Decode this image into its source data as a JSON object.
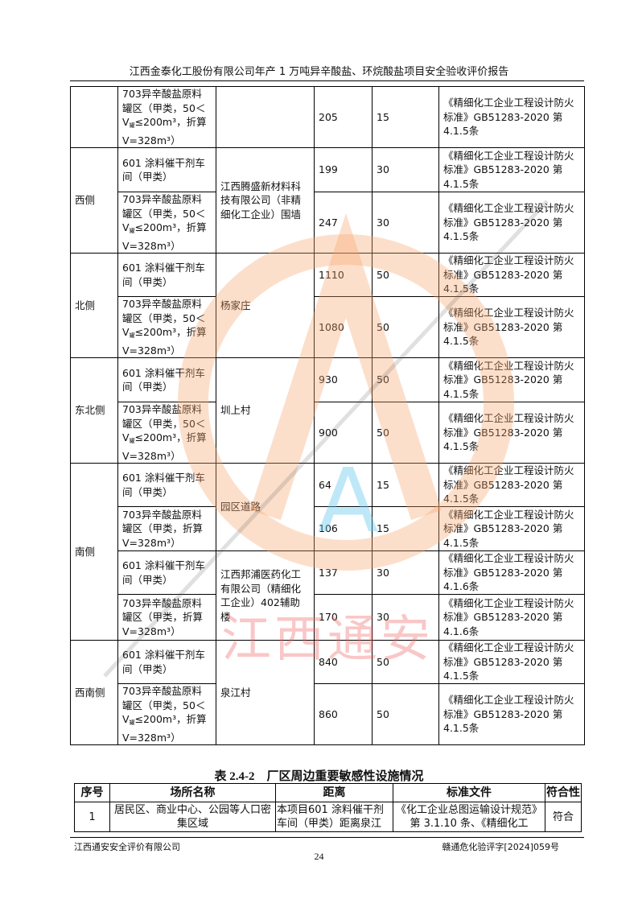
{
  "header": {
    "title": "江西金泰化工股份有限公司年产 1 万吨异辛酸盐、环烷酸盐项目安全验收评价报告"
  },
  "table": {
    "groups": [
      {
        "side": "",
        "targets": [
          {
            "name": "",
            "items": [
              {
                "source": "703异辛酸盐原料罐区（甲类，50＜V罐≤200m³，折算 V=328m³）",
                "distance": "205",
                "required": "15",
                "standard": "《精细化工企业工程设计防火标准》GB51283-2020 第 4.1.5条"
              }
            ]
          }
        ]
      },
      {
        "side": "西侧",
        "targets": [
          {
            "name": "江西腾盛新材料科技有限公司（非精细化工企业）围墙",
            "items": [
              {
                "source": "601 涂料催干剂车间（甲类）",
                "distance": "199",
                "required": "30",
                "standard": "《精细化工企业工程设计防火标准》GB51283-2020 第 4.1.5条"
              },
              {
                "source": "703异辛酸盐原料罐区（甲类，50＜V罐≤200m³，折算 V=328m³）",
                "distance": "247",
                "required": "30",
                "standard": "《精细化工企业工程设计防火标准》GB51283-2020 第 4.1.5条"
              }
            ]
          }
        ]
      },
      {
        "side": "北侧",
        "targets": [
          {
            "name": "杨家庄",
            "items": [
              {
                "source": "601 涂料催干剂车间（甲类）",
                "distance": "1110",
                "required": "50",
                "standard": "《精细化工企业工程设计防火标准》GB51283-2020 第 4.1.5条"
              },
              {
                "source": "703异辛酸盐原料罐区（甲类，50＜V罐≤200m³，折算 V=328m³）",
                "distance": "1080",
                "required": "50",
                "standard": "《精细化工企业工程设计防火标准》GB51283-2020 第 4.1.5条"
              }
            ]
          }
        ]
      },
      {
        "side": "东北侧",
        "targets": [
          {
            "name": "圳上村",
            "items": [
              {
                "source": "601 涂料催干剂车间（甲类）",
                "distance": "930",
                "required": "50",
                "standard": "《精细化工企业工程设计防火标准》GB51283-2020 第 4.1.5条"
              },
              {
                "source": "703异辛酸盐原料罐区（甲类，50＜V罐≤200m³，折算 V=328m³）",
                "distance": "900",
                "required": "50",
                "standard": "《精细化工企业工程设计防火标准》GB51283-2020 第 4.1.5条"
              }
            ]
          }
        ]
      },
      {
        "side": "南侧",
        "targets": [
          {
            "name": "园区道路",
            "items": [
              {
                "source": "601 涂料催干剂车间（甲类）",
                "distance": "64",
                "required": "15",
                "standard": "《精细化工企业工程设计防火标准》GB51283-2020 第 4.1.5条"
              },
              {
                "source": "703异辛酸盐原料罐区（甲类，折算V=328m³）",
                "distance": "106",
                "required": "15",
                "standard": "《精细化工企业工程设计防火标准》GB51283-2020 第 4.1.5条"
              }
            ]
          },
          {
            "name": "江西邦浦医药化工有限公司（精细化工企业）402辅助楼",
            "items": [
              {
                "source": "601 涂料催干剂车间（甲类）",
                "distance": "137",
                "required": "30",
                "standard": "《精细化工企业工程设计防火标准》GB51283-2020 第 4.1.6条"
              },
              {
                "source": "703异辛酸盐原料罐区（甲类，折算V=328m³）",
                "distance": "170",
                "required": "30",
                "standard": "《精细化工企业工程设计防火标准》GB51283-2020 第 4.1.6条"
              }
            ]
          }
        ]
      },
      {
        "side": "西南侧",
        "targets": [
          {
            "name": "泉江村",
            "items": [
              {
                "source": "601 涂料催干剂车间（甲类）",
                "distance": "840",
                "required": "50",
                "standard": "《精细化工企业工程设计防火标准》GB51283-2020 第 4.1.5条"
              },
              {
                "source": "703异辛酸盐原料罐区（甲类，50＜V罐≤200m³，折算 V=328m³）",
                "distance": "860",
                "required": "50",
                "standard": "《精细化工企业工程设计防火标准》GB51283-2020 第 4.1.5条"
              }
            ]
          }
        ]
      }
    ]
  },
  "table2": {
    "caption": "表 2.4-2　厂区周边重要敏感性设施情况",
    "headers": [
      "序号",
      "场所名称",
      "距离",
      "标准文件",
      "符合性"
    ],
    "row": [
      "1",
      "居民区、商业中心、公园等人口密集区域",
      "本项目601 涂料催干剂车间（甲类）距离泉江",
      "《化工企业总图运输设计规范》第 3.1.10 条、《精细化工",
      "符合"
    ]
  },
  "watermark": {
    "text": "江西通安",
    "logo_letter": "A",
    "colors": {
      "ring": "#f5a36b",
      "text": "#f06060",
      "letter": "#5fc8ee"
    }
  },
  "footer": {
    "left": "江西通安安全评价有限公司",
    "right": "赣通危化验评字[2024]059号",
    "page": "24"
  }
}
